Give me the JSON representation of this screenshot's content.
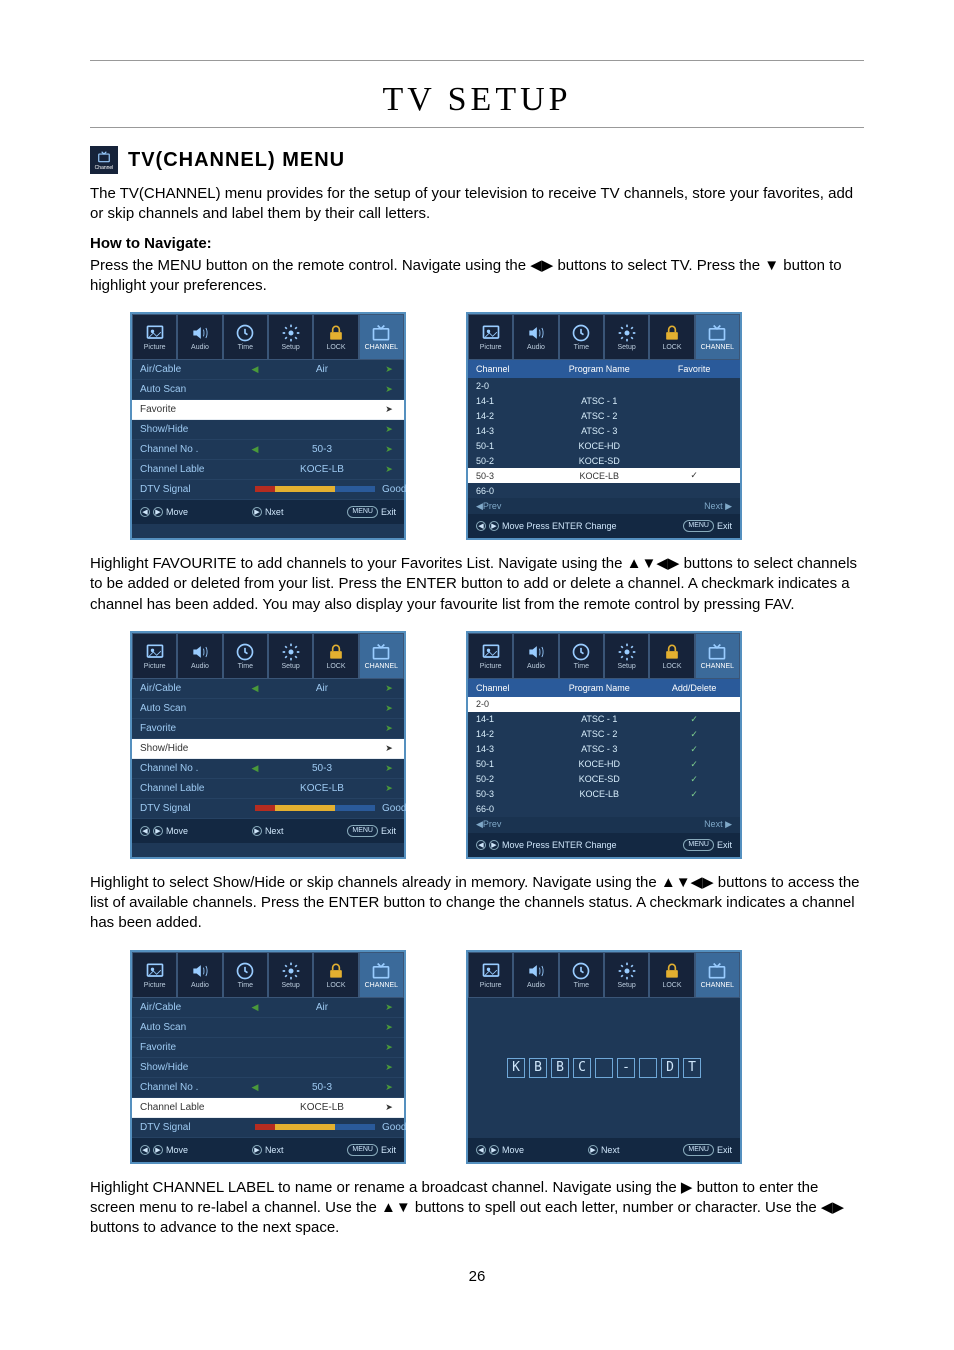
{
  "page_number": "26",
  "title": "TV SETUP",
  "section_title": "TV(CHANNEL) MENU",
  "intro": "The TV(CHANNEL) menu provides for the setup of your television to receive TV channels, store your favorites, add or skip channels and label them by their call letters.",
  "howto_label": "How to Navigate:",
  "nav_text": "Press the MENU button on the remote control. Navigate using the ◀▶ buttons to select TV. Press the ▼ button to highlight your preferences.",
  "para_fav": "Highlight FAVOURITE to add channels to your Favorites List. Navigate using the ▲▼◀▶ buttons to select channels to be added or deleted from your list. Press the ENTER button to add or delete a channel. A checkmark indicates a channel has been added. You may also display your favourite list from the remote control by pressing FAV.",
  "para_show": "Highlight to select Show/Hide or skip channels already in memory. Navigate using the ▲▼◀▶ buttons to access the list of available channels. Press the ENTER button to change the channels status. A checkmark indicates a channel has been added.",
  "para_label": "Highlight CHANNEL LABEL to name or rename a broadcast channel. Navigate using the ▶ button to enter the screen menu to re-label a channel. Use the ▲▼ buttons to spell out each letter, number or character. Use the ◀▶ buttons to advance to the next space.",
  "tabs": [
    "Picture",
    "Audio",
    "Time",
    "Setup",
    "LOCK",
    "CHANNEL"
  ],
  "channel_rows": [
    {
      "label": "Air/Cable",
      "value": "Air",
      "left": true,
      "right": true
    },
    {
      "label": "Auto Scan",
      "value": "",
      "left": false,
      "right": true
    },
    {
      "label": "Favorite",
      "value": "",
      "left": false,
      "right": true
    },
    {
      "label": "Show/Hide",
      "value": "",
      "left": false,
      "right": true
    },
    {
      "label": "Channel No .",
      "value": "50-3",
      "left": true,
      "right": true
    },
    {
      "label": "Channel Lable",
      "value": "KOCE-LB",
      "left": false,
      "right": true
    },
    {
      "label": "DTV Signal",
      "value": "Good",
      "left": false,
      "right": false,
      "signal": true
    }
  ],
  "menu1_selected": "Favorite",
  "menu2_selected": "Show/Hide",
  "menu3_selected": "Channel Lable",
  "foot_move": "Move",
  "foot_next": "Next",
  "foot_nxet": "Nxet",
  "foot_exit": "Exit",
  "foot_menu": "MENU",
  "chlist_header_fav": {
    "c1": "Channel",
    "c2": "Program Name",
    "c3": "Favorite"
  },
  "chlist_header_add": {
    "c1": "Channel",
    "c2": "Program Name",
    "c3": "Add/Delete"
  },
  "chlist_rows": [
    {
      "ch": "2-0",
      "name": "",
      "fav": false
    },
    {
      "ch": "14-1",
      "name": "ATSC - 1",
      "fav": false
    },
    {
      "ch": "14-2",
      "name": "ATSC - 2",
      "fav": false
    },
    {
      "ch": "14-3",
      "name": "ATSC - 3",
      "fav": false
    },
    {
      "ch": "50-1",
      "name": "KOCE-HD",
      "fav": false
    },
    {
      "ch": "50-2",
      "name": "KOCE-SD",
      "fav": false
    },
    {
      "ch": "50-3",
      "name": "KOCE-LB",
      "fav": true
    },
    {
      "ch": "66-0",
      "name": "",
      "fav": false
    }
  ],
  "chlist_rows_add": [
    {
      "ch": "2-0",
      "name": "",
      "fav": false
    },
    {
      "ch": "14-1",
      "name": "ATSC - 1",
      "fav": true
    },
    {
      "ch": "14-2",
      "name": "ATSC - 2",
      "fav": true
    },
    {
      "ch": "14-3",
      "name": "ATSC - 3",
      "fav": true
    },
    {
      "ch": "50-1",
      "name": "KOCE-HD",
      "fav": true
    },
    {
      "ch": "50-2",
      "name": "KOCE-SD",
      "fav": true
    },
    {
      "ch": "50-3",
      "name": "KOCE-LB",
      "fav": true
    },
    {
      "ch": "66-0",
      "name": "",
      "fav": false
    }
  ],
  "chlist_sel_fav": "50-3",
  "chlist_sel_add": "2-0",
  "prev_label": "Prev",
  "next_label": "Next ▶",
  "foot_change": "Move  Press ENTER Change",
  "label_letters": [
    "K",
    "B",
    "B",
    "C",
    " ",
    "-",
    " ",
    "D",
    "T"
  ],
  "channel_icon_label": "Channel"
}
